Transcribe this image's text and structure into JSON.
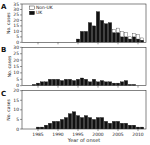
{
  "chart_data": [
    {
      "type": "bar",
      "title": "A",
      "stacked": true,
      "legend": "upper left",
      "grid": false,
      "tick_labels": "y",
      "ylabel": "No. cases",
      "x": [
        1982,
        1983,
        1984,
        1985,
        1986,
        1987,
        1988,
        1989,
        1990,
        1991,
        1992,
        1993,
        1994,
        1995,
        1996,
        1997,
        1998,
        1999,
        2000,
        2001,
        2002,
        2003,
        2004,
        2005,
        2006,
        2007,
        2008,
        2009,
        2010,
        2011
      ],
      "series": [
        {
          "name": "UK",
          "color": "#111111",
          "values": [
            0,
            0,
            0,
            0,
            0,
            0,
            0,
            0,
            0,
            0,
            0,
            0,
            0,
            3,
            10,
            10,
            18,
            15,
            28,
            20,
            17,
            18,
            9,
            9,
            5,
            5,
            3,
            5,
            3,
            2
          ]
        },
        {
          "name": "Non-UK",
          "color": "#ffffff",
          "values": [
            0,
            0,
            0,
            0,
            0,
            0,
            0,
            0,
            0,
            0,
            0,
            0,
            0,
            0,
            0,
            0,
            0,
            0,
            0,
            0,
            0,
            0,
            3,
            4,
            5,
            4,
            2,
            3,
            4,
            2
          ]
        }
      ],
      "xlim": [
        1981,
        2012
      ],
      "xticks": [
        1985,
        1990,
        1995,
        2000,
        2005,
        2010
      ],
      "ylim": [
        0,
        35
      ],
      "yticks": [
        0,
        5,
        10,
        15,
        20,
        25,
        30,
        35
      ]
    },
    {
      "type": "bar",
      "title": "B",
      "grid": false,
      "tick_labels": "y",
      "ylabel": "No. cases",
      "x": [
        1982,
        1983,
        1984,
        1985,
        1986,
        1987,
        1988,
        1989,
        1990,
        1991,
        1992,
        1993,
        1994,
        1995,
        1996,
        1997,
        1998,
        1999,
        2000,
        2001,
        2002,
        2003,
        2004,
        2005,
        2006,
        2007,
        2008,
        2009,
        2010,
        2011
      ],
      "values": [
        0,
        0,
        1,
        2,
        3,
        3,
        5,
        5,
        5,
        4,
        5,
        5,
        4,
        5,
        6,
        5,
        3,
        5,
        3,
        4,
        3,
        3,
        2,
        2,
        3,
        4,
        1,
        1,
        0,
        0
      ],
      "color": "#111111",
      "xlim": [
        1981,
        2012
      ],
      "xticks": [
        1985,
        1990,
        1995,
        2000,
        2005,
        2010
      ],
      "ylim": [
        0,
        30
      ],
      "yticks": [
        0,
        5,
        10,
        15,
        20,
        25,
        30
      ]
    },
    {
      "type": "bar",
      "title": "C",
      "grid": false,
      "xlabel": "Year of onset",
      "ylabel": "No. cases",
      "x": [
        1982,
        1983,
        1984,
        1985,
        1986,
        1987,
        1988,
        1989,
        1990,
        1991,
        1992,
        1993,
        1994,
        1995,
        1996,
        1997,
        1998,
        1999,
        2000,
        2001,
        2002,
        2003,
        2004,
        2005,
        2006,
        2007,
        2008,
        2009,
        2010,
        2011
      ],
      "values": [
        0,
        0,
        0,
        1,
        1,
        2,
        3,
        4,
        4,
        5,
        6,
        8,
        9,
        7,
        6,
        7,
        6,
        5,
        6,
        6,
        4,
        3,
        4,
        4,
        3,
        3,
        2,
        2,
        1,
        1
      ],
      "color": "#111111",
      "xlim": [
        1981,
        2012
      ],
      "xticks": [
        1985,
        1990,
        1995,
        2000,
        2005,
        2010
      ],
      "ylim": [
        0,
        20
      ],
      "yticks": [
        0,
        5,
        10,
        15,
        20
      ]
    }
  ]
}
